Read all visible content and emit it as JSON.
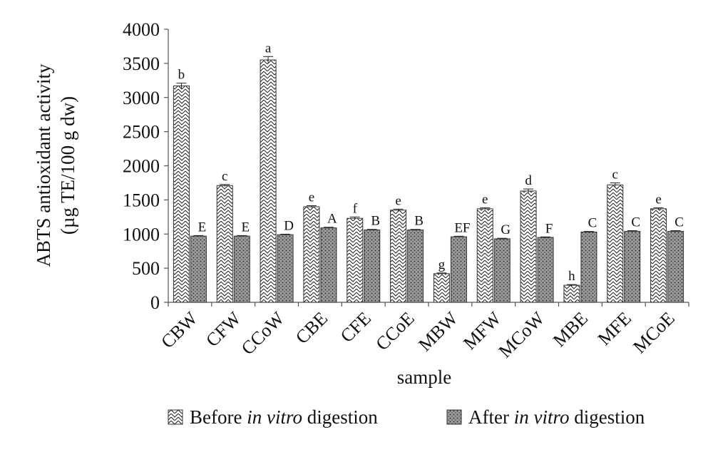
{
  "chart_data": {
    "type": "bar",
    "title": "",
    "ylabel_line1": "ABTS antioxidant activity",
    "ylabel_line2": "(µg TE/100 g dw)",
    "xlabel": "sample",
    "ylim": [
      0,
      4000
    ],
    "yticks": [
      0,
      500,
      1000,
      1500,
      2000,
      2500,
      3000,
      3500,
      4000
    ],
    "categories": [
      "CBW",
      "CFW",
      "CCoW",
      "CBE",
      "CFE",
      "CCoE",
      "MBW",
      "MFW",
      "MCoW",
      "MBE",
      "MFE",
      "MCoE"
    ],
    "series": [
      {
        "name": "Before in vitro digestion",
        "legend_prefix": "Before ",
        "legend_italic": "in vitro",
        "legend_suffix": " digestion",
        "pattern": "zigzag-hatch",
        "values": [
          3170,
          1710,
          3550,
          1400,
          1230,
          1350,
          420,
          1370,
          1630,
          250,
          1720,
          1370
        ],
        "errors": [
          40,
          15,
          50,
          15,
          20,
          15,
          10,
          15,
          30,
          10,
          30,
          15
        ],
        "labels": [
          "b",
          "c",
          "a",
          "e",
          "f",
          "e",
          "g",
          "e",
          "d",
          "h",
          "c",
          "e"
        ]
      },
      {
        "name": "After in vitro digestion",
        "legend_prefix": "After ",
        "legend_italic": "in vitro",
        "legend_suffix": " digestion",
        "pattern": "dots",
        "values": [
          970,
          970,
          990,
          1090,
          1060,
          1060,
          960,
          930,
          950,
          1030,
          1040,
          1040
        ],
        "errors": [
          8,
          8,
          8,
          10,
          8,
          8,
          8,
          8,
          8,
          8,
          10,
          10
        ],
        "labels": [
          "E",
          "E",
          "D",
          "A",
          "B",
          "B",
          "EF",
          "G",
          "F",
          "C",
          "C",
          "C"
        ]
      }
    ],
    "legend_position": "bottom",
    "grid": false
  }
}
